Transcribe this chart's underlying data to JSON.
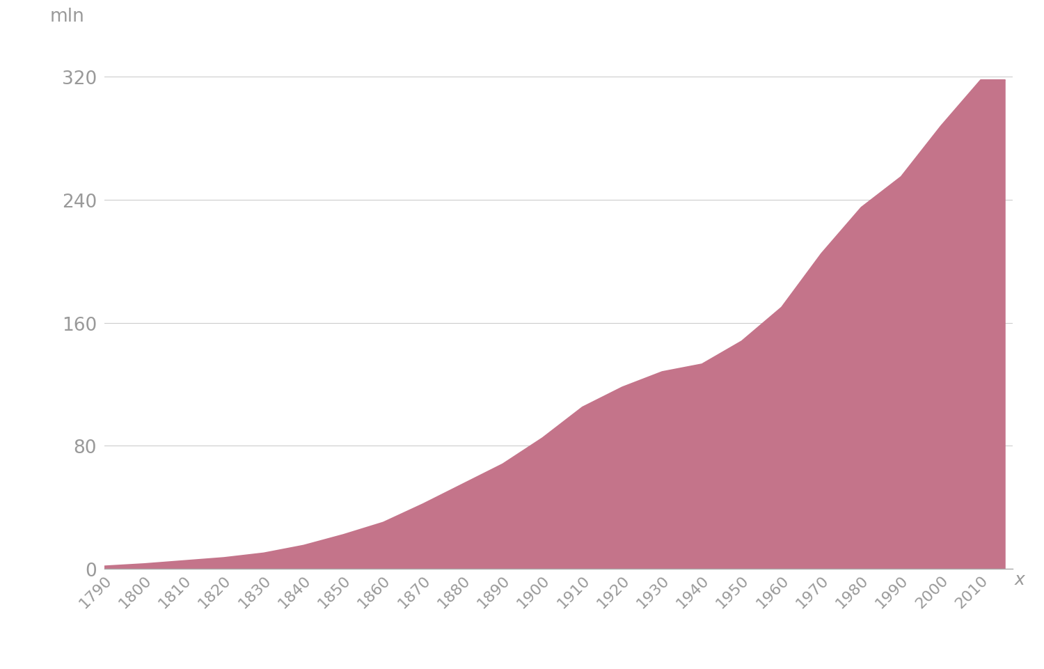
{
  "years": [
    1790,
    1800,
    1810,
    1820,
    1830,
    1840,
    1850,
    1860,
    1870,
    1880,
    1890,
    1900,
    1910,
    1920,
    1930,
    1940,
    1950,
    1960,
    1970,
    1980,
    1990,
    2000,
    2010,
    2016
  ],
  "population": [
    1.5,
    3,
    5,
    7,
    10,
    15,
    22,
    30,
    42,
    55,
    68,
    85,
    105,
    118,
    128,
    133,
    148,
    170,
    205,
    235,
    255,
    288,
    318,
    318
  ],
  "fill_color": "#c4748a",
  "line_color": "#c4748a",
  "background_color": "#ffffff",
  "grid_color": "#cccccc",
  "axis_color": "#aaaaaa",
  "tick_color": "#999999",
  "ylabel": "mln",
  "xlabel": "x",
  "yticks": [
    0,
    80,
    160,
    240,
    320
  ],
  "ylim": [
    0,
    340
  ],
  "xlim": [
    1790,
    2018
  ],
  "xtick_start": 1790,
  "xtick_end": 2010,
  "xtick_step": 10
}
